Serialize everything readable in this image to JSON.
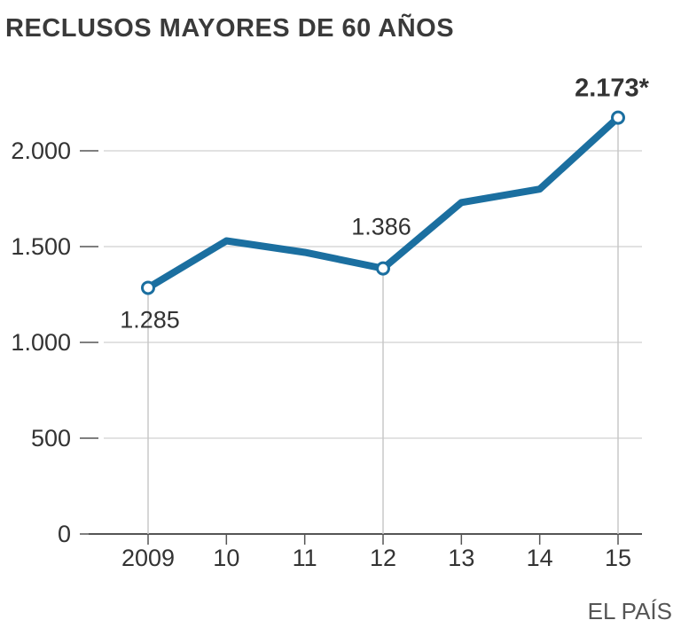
{
  "title": "RECLUSOS MAYORES DE 60 AÑOS",
  "source": "EL PAÍS",
  "chart_data": {
    "type": "line",
    "title": "RECLUSOS MAYORES DE 60 AÑOS",
    "categories": [
      "2009",
      "10",
      "11",
      "12",
      "13",
      "14",
      "15"
    ],
    "values": [
      1285,
      1530,
      1470,
      1386,
      1730,
      1800,
      2173
    ],
    "ylim": [
      0,
      2000
    ],
    "yticks": [
      0,
      500,
      1000,
      1500,
      2000
    ],
    "ytick_labels": [
      "0",
      "500",
      "1.000",
      "1.500",
      "2.000"
    ],
    "annotations": [
      {
        "index": 0,
        "label": "1.285",
        "position": "below",
        "bold": false
      },
      {
        "index": 3,
        "label": "1.386",
        "position": "above",
        "bold": false
      },
      {
        "index": 6,
        "label": "2.173*",
        "position": "above",
        "bold": true
      }
    ],
    "line_color": "#1b6fa0",
    "grid": true,
    "xlabel": "",
    "ylabel": ""
  }
}
